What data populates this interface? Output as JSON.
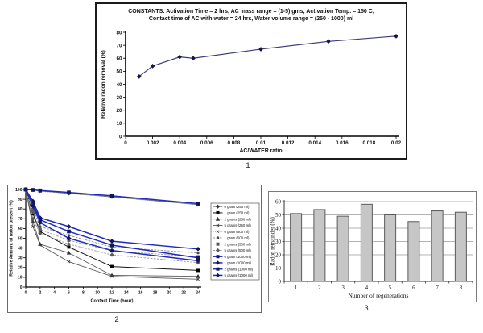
{
  "figure": {
    "labels": {
      "chart1": "1",
      "chart2": "2",
      "chart3": "3"
    }
  },
  "chart_data": [
    {
      "id": "removal-vs-ac-water-ratio",
      "type": "line",
      "title_lines": [
        "CONSTANTS: Activation Time = 2 hrs,    AC mass range = (1-5) gms, Activation Temp. = 150 C,",
        "Contact time of    AC with water = 24 hrs, Water volume range = (250 - 1000) ml"
      ],
      "xlabel": "AC/WATER ratio",
      "ylabel": "Relative radon removal (%)",
      "xlim": [
        0,
        0.02
      ],
      "ylim": [
        0,
        80
      ],
      "xticks": [
        0,
        0.002,
        0.004,
        0.006,
        0.008,
        0.01,
        0.012,
        0.014,
        0.016,
        0.018,
        0.02
      ],
      "xtick_labels": [
        "0",
        "0.002",
        "0.004",
        "0.006",
        "0.008",
        "0.01",
        "0.012",
        "0.014",
        "0.016",
        "0.018",
        "0.02"
      ],
      "yticks": [
        0,
        10,
        20,
        30,
        40,
        50,
        60,
        70,
        80
      ],
      "grid": false,
      "legend": false,
      "series": [
        {
          "name": "Relative radon removal",
          "color": "#3c3c80",
          "marker_color": "#16164a",
          "dash": "solid",
          "width": 1.2,
          "marker": "diamond",
          "x": [
            0.001,
            0.002,
            0.004,
            0.005,
            0.01,
            0.015,
            0.02
          ],
          "values": [
            46,
            54,
            61,
            60,
            67,
            73,
            77
          ]
        }
      ]
    },
    {
      "id": "radon-present-vs-contact-time",
      "type": "line",
      "xlabel": "Contact Time (hour)",
      "ylabel": "Relative Amount of radon present (%)",
      "xlim": [
        0,
        24
      ],
      "ylim": [
        0,
        100
      ],
      "xticks": [
        0,
        2,
        4,
        6,
        8,
        10,
        12,
        14,
        16,
        18,
        20,
        22,
        24
      ],
      "xtick_labels": [
        "0",
        "2",
        "4",
        "6",
        "8",
        "10",
        "12",
        "14",
        "16",
        "18",
        "20",
        "22",
        "24"
      ],
      "yticks": [
        0,
        10,
        20,
        30,
        40,
        50,
        60,
        70,
        80,
        90,
        100
      ],
      "grid": false,
      "legend": true,
      "legend_position": "right",
      "x": [
        0,
        1,
        2,
        6,
        12,
        24
      ],
      "series": [
        {
          "name": "0 gram (250 ml)",
          "color": "#6e6e6e",
          "marker_color": "#3a3a3a",
          "dash": "solid",
          "width": 0.9,
          "marker": "diamond",
          "values": [
            100,
            99.5,
            98.5,
            96,
            92.5,
            84.5
          ]
        },
        {
          "name": "1 gram (250 ml)",
          "color": "#151515",
          "marker_color": "#000000",
          "dash": "solid",
          "width": 1.0,
          "marker": "square",
          "values": [
            100,
            75,
            57,
            41,
            21,
            17
          ]
        },
        {
          "name": "2 grams  (250 ml)",
          "color": "#5a5a5a",
          "marker_color": "#333333",
          "dash": "solid",
          "width": 0.9,
          "marker": "triangle",
          "values": [
            100,
            67,
            44,
            35,
            12,
            11
          ]
        },
        {
          "name": "5 grams  (250 ml)",
          "color": "#5a5a5a",
          "marker_color": "#333333",
          "dash": "solid",
          "width": 0.9,
          "marker": "x",
          "values": [
            100,
            62,
            43,
            26,
            11,
            8
          ]
        },
        {
          "name": "0 gram  (500 ml)",
          "color": "#7a7a7a",
          "marker_color": "#4a4a4a",
          "dash": "dotted",
          "width": 0.8,
          "marker": "x",
          "values": [
            100,
            99.3,
            98.2,
            95.8,
            92.3,
            84.3
          ]
        },
        {
          "name": "1 gram (500 ml)",
          "color": "#8a8a8a",
          "marker_color": "#4a4a4a",
          "dash": "dashed",
          "width": 0.9,
          "marker": "dot",
          "values": [
            100,
            80,
            62,
            53,
            41,
            35
          ]
        },
        {
          "name": "2 grams (500 ml)",
          "color": "#9a9a9a",
          "marker_color": "#5a5a5a",
          "dash": "dashed",
          "width": 0.9,
          "marker": "square",
          "values": [
            100,
            77,
            59,
            48,
            37,
            31
          ]
        },
        {
          "name": "5 grams (500 ml)",
          "color": "#9a9a9a",
          "marker_color": "#5a5a5a",
          "dash": "dashed",
          "width": 0.9,
          "marker": "diamond",
          "values": [
            100,
            70,
            55,
            44,
            33,
            25
          ]
        },
        {
          "name": "0 gram (1000 ml)",
          "color": "#1f2bbf",
          "marker_color": "#10165e",
          "dash": "solid",
          "width": 1.5,
          "marker": "square",
          "values": [
            100,
            99.6,
            99,
            97,
            93.5,
            85.5
          ]
        },
        {
          "name": "1 gram  (1000 ml)",
          "color": "#1f2bbf",
          "marker_color": "#10165e",
          "dash": "solid",
          "width": 1.5,
          "marker": "diamond",
          "values": [
            100,
            88,
            71,
            62,
            47,
            39
          ]
        },
        {
          "name": "2 grams  (1000 ml)",
          "color": "#1f2bbf",
          "marker_color": "#10165e",
          "dash": "solid",
          "width": 1.5,
          "marker": "square",
          "values": [
            100,
            85,
            69,
            57,
            43,
            30
          ]
        },
        {
          "name": "5 grams  (1000 ml)",
          "color": "#1f2bbf",
          "marker_color": "#10165e",
          "dash": "solid",
          "width": 1.5,
          "marker": "diamond",
          "values": [
            100,
            83,
            66,
            50,
            37.5,
            27
          ]
        }
      ]
    },
    {
      "id": "radon-remainder-vs-regenerations",
      "type": "bar",
      "xlabel": "Number of regenerations",
      "ylabel": "Radon remainder (%)",
      "categories": [
        "1",
        "2",
        "3",
        "4",
        "5",
        "6",
        "7",
        "8"
      ],
      "values": [
        51,
        54,
        49,
        58,
        50,
        45,
        53,
        52
      ],
      "ylim": [
        0,
        60
      ],
      "yticks": [
        0,
        10,
        20,
        30,
        40,
        50,
        60
      ],
      "grid": true,
      "bar_fill": "#c6c6c6",
      "bar_stroke": "#5a5a5a",
      "grid_color": "#9a9a9a"
    }
  ]
}
